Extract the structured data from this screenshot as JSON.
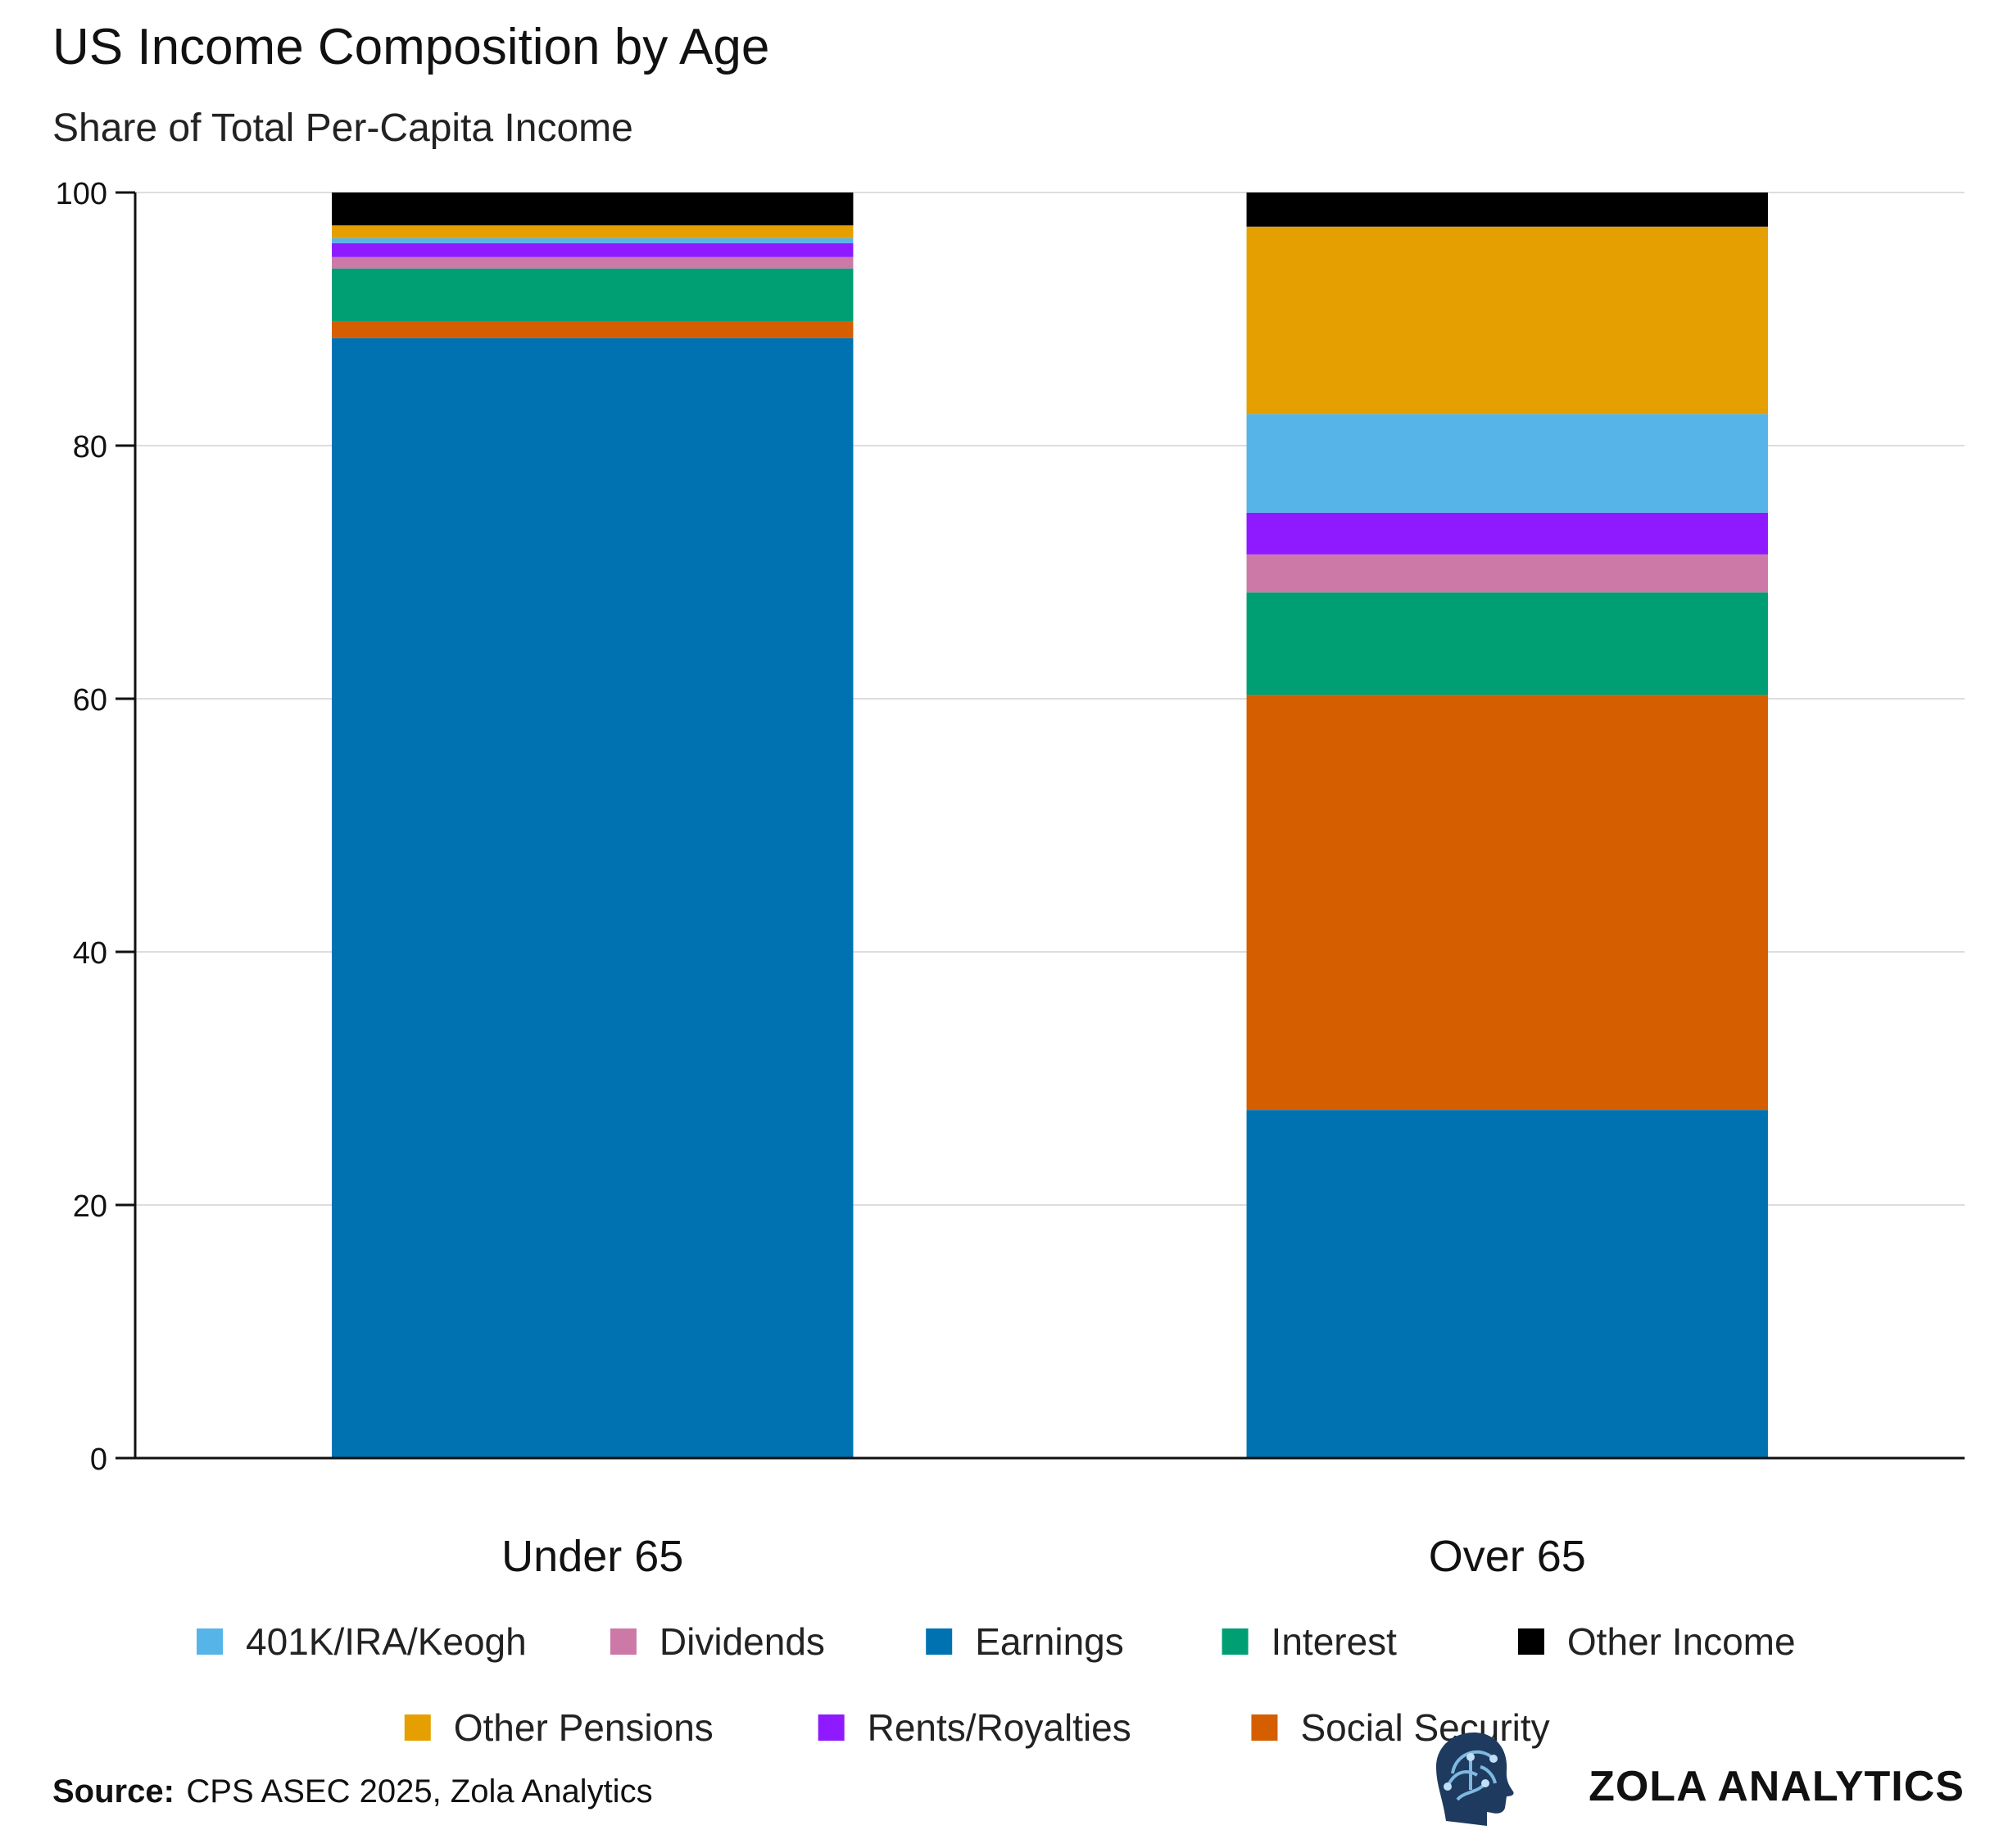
{
  "chart_data": {
    "type": "bar",
    "stacked": true,
    "title": "US Income Composition by Age",
    "subtitle": "Share of Total Per-Capita Income",
    "xlabel": "",
    "ylabel": "",
    "ylim": [
      0,
      100
    ],
    "yticks": [
      0,
      20,
      40,
      60,
      80,
      100
    ],
    "ytick_labels": [
      "0",
      "20",
      "40",
      "60",
      "80",
      "100"
    ],
    "grid": true,
    "legend_position": "bottom",
    "categories": [
      "Under 65",
      "Over 65"
    ],
    "series": [
      {
        "name": "Earnings",
        "color": "#0072B2",
        "values": [
          88.5,
          27.5
        ]
      },
      {
        "name": "Social Security",
        "color": "#D55E00",
        "values": [
          1.3,
          32.8
        ]
      },
      {
        "name": "Interest",
        "color": "#009E73",
        "values": [
          4.2,
          8.1
        ]
      },
      {
        "name": "Dividends",
        "color": "#CC79A7",
        "values": [
          0.9,
          3.0
        ]
      },
      {
        "name": "Rents/Royalties",
        "color": "#8F1AFF",
        "values": [
          1.1,
          3.3
        ]
      },
      {
        "name": "401K/IRA/Keogh",
        "color": "#56B4E9",
        "values": [
          0.4,
          7.8
        ]
      },
      {
        "name": "Other Pensions",
        "color": "#E69F00",
        "values": [
          1.0,
          14.8
        ]
      },
      {
        "name": "Other Income",
        "color": "#000000",
        "values": [
          2.6,
          2.7
        ]
      }
    ],
    "legend_order": [
      "401K/IRA/Keogh",
      "Dividends",
      "Earnings",
      "Interest",
      "Other Income",
      "Other Pensions",
      "Rents/Royalties",
      "Social Security"
    ]
  },
  "footer": {
    "source_label": "Source:",
    "source_text": "CPS ASEC 2025, Zola Analytics",
    "brand": "ZOLA ANALYTICS",
    "logo_icon": "brain-head-icon"
  }
}
